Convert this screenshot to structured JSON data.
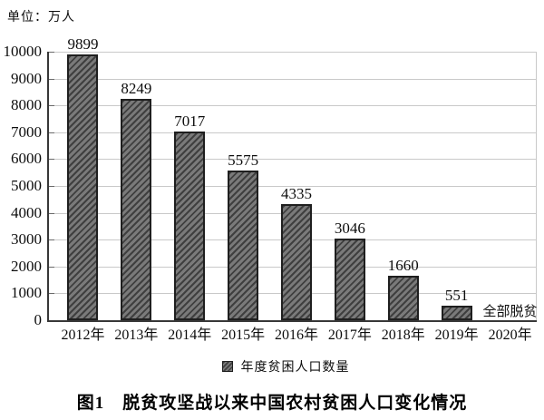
{
  "chart_data": {
    "type": "bar",
    "title": "图1　脱贫攻坚战以来中国农村贫困人口变化情况",
    "unit": "单位：万人",
    "legend_label": "年度贫困人口数量",
    "legend_position": "bottom",
    "categories": [
      "2012年",
      "2013年",
      "2014年",
      "2015年",
      "2016年",
      "2017年",
      "2018年",
      "2019年",
      "2020年"
    ],
    "values": [
      9899,
      8249,
      7017,
      5575,
      4335,
      3046,
      1660,
      551,
      null
    ],
    "data_labels": [
      "9899",
      "8249",
      "7017",
      "5575",
      "4335",
      "3046",
      "1660",
      "551",
      "全部脱贫"
    ],
    "annotation": {
      "category": "2020年",
      "text": "全部脱贫"
    },
    "xlabel": "",
    "ylabel": "",
    "ylim": [
      0,
      10000
    ],
    "ytick_step": 1000,
    "grid": true,
    "colors": {
      "background": "#ffffff",
      "gridline": "#c9c9c9",
      "axis": "#383838",
      "tick": "#6a6a6a",
      "bar_fill": "#7a7a7a",
      "bar_hatch": "#3f3f3f",
      "bar_border": "#1f1f1f",
      "text": "#0d0d0d"
    }
  }
}
